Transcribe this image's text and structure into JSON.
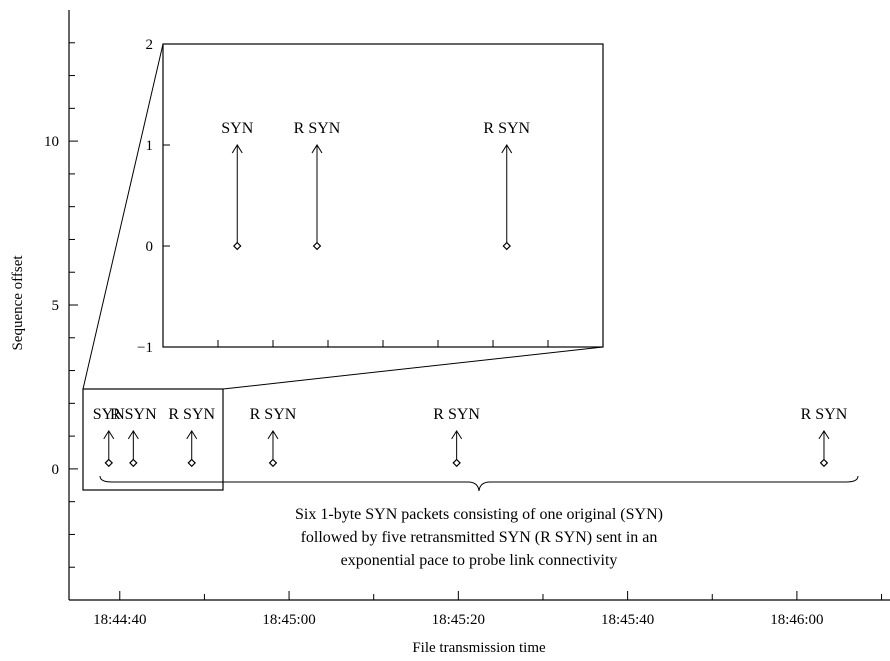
{
  "chart_data": {
    "type": "scatter",
    "xlabel": "File transmission time",
    "ylabel": "Sequence offset",
    "x_ticks": [
      "18:44:40",
      "18:45:00",
      "18:45:20",
      "18:45:40",
      "18:46:00"
    ],
    "x_tick_seconds": [
      40,
      60,
      80,
      100,
      120
    ],
    "xlim_seconds": [
      34,
      131
    ],
    "y_ticks": [
      0,
      5,
      10
    ],
    "ylim": [
      -4,
      14
    ],
    "points": [
      {
        "label": "SYN",
        "time": "18:44:38.7",
        "seconds": 38.7,
        "offset": 0
      },
      {
        "label": "R SYN",
        "time": "18:44:41.6",
        "seconds": 41.6,
        "offset": 0
      },
      {
        "label": "R SYN",
        "time": "18:44:48.5",
        "seconds": 48.5,
        "offset": 0
      },
      {
        "label": "R SYN",
        "time": "18:44:58.1",
        "seconds": 58.1,
        "offset": 0
      },
      {
        "label": "R SYN",
        "time": "18:45:19.8",
        "seconds": 79.8,
        "offset": 0
      },
      {
        "label": "R SYN",
        "time": "18:46:03.2",
        "seconds": 123.2,
        "offset": 0
      }
    ],
    "annotation": [
      "Six 1-byte SYN packets consisting of one original (SYN)",
      "followed by five retransmitted SYN (R SYN) sent in an",
      "exponential pace to probe link connectivity"
    ],
    "inset": {
      "y_ticks": [
        -1,
        0,
        1,
        2
      ],
      "ylim": [
        -1,
        2
      ],
      "xlim_seconds": [
        36,
        52
      ],
      "points": [
        {
          "label": "SYN",
          "seconds": 38.7,
          "offset": 0
        },
        {
          "label": "R SYN",
          "seconds": 41.6,
          "offset": 0
        },
        {
          "label": "R SYN",
          "seconds": 48.5,
          "offset": 0
        }
      ]
    },
    "grid": false
  }
}
